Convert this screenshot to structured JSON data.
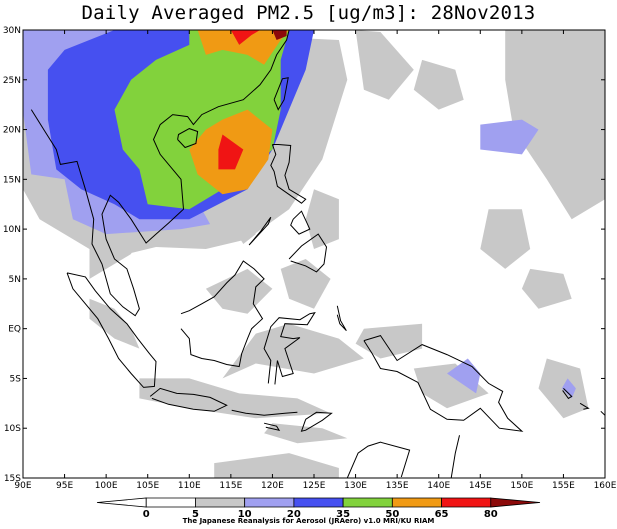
{
  "title": "Daily Averaged PM2.5 [ug/m3]: 28Nov2013",
  "credit": "The Japanese Reanalysis for Aerosol (JRAero) v1.0 MRI/KU RIAM",
  "axes": {
    "lon_range": [
      90,
      160
    ],
    "lat_range": [
      -15,
      30
    ],
    "lon_ticks": [
      {
        "v": 90,
        "label": "90E"
      },
      {
        "v": 95,
        "label": "95E"
      },
      {
        "v": 100,
        "label": "100E"
      },
      {
        "v": 105,
        "label": "105E"
      },
      {
        "v": 110,
        "label": "110E"
      },
      {
        "v": 115,
        "label": "115E"
      },
      {
        "v": 120,
        "label": "120E"
      },
      {
        "v": 125,
        "label": "125E"
      },
      {
        "v": 130,
        "label": "130E"
      },
      {
        "v": 135,
        "label": "135E"
      },
      {
        "v": 140,
        "label": "140E"
      },
      {
        "v": 145,
        "label": "145E"
      },
      {
        "v": 150,
        "label": "150E"
      },
      {
        "v": 155,
        "label": "155E"
      },
      {
        "v": 160,
        "label": "160E"
      }
    ],
    "lat_ticks": [
      {
        "v": 30,
        "label": "30N"
      },
      {
        "v": 25,
        "label": "25N"
      },
      {
        "v": 20,
        "label": "20N"
      },
      {
        "v": 15,
        "label": "15N"
      },
      {
        "v": 10,
        "label": "10N"
      },
      {
        "v": 5,
        "label": "5N"
      },
      {
        "v": 0,
        "label": "EQ"
      },
      {
        "v": -5,
        "label": "5S"
      },
      {
        "v": -10,
        "label": "10S"
      },
      {
        "v": -15,
        "label": "15S"
      }
    ]
  },
  "colorbar": {
    "levels": [
      "0",
      "5",
      "10",
      "20",
      "35",
      "50",
      "65",
      "80"
    ],
    "colors": [
      "#ffffff",
      "#ffffff",
      "#c8c8c8",
      "#a0a0f0",
      "#4650f0",
      "#82d23c",
      "#f09a14",
      "#f01414",
      "#8c0a0a"
    ]
  },
  "chart_data": {
    "type": "heatmap",
    "title": "Daily Averaged PM2.5 [ug/m3]: 28Nov2013",
    "variable": "PM2.5 daily average (ug/m3)",
    "date": "28Nov2013",
    "x_range_lon": [
      90,
      160
    ],
    "y_range_lat": [
      -15,
      30
    ],
    "contour_levels": [
      0,
      5,
      10,
      20,
      35,
      50,
      65,
      80
    ],
    "regions": [
      {
        "band": "10-20",
        "lonlat": [
          [
            111,
            30
          ],
          [
            112,
            24
          ],
          [
            106,
            15
          ],
          [
            111.5,
            12
          ],
          [
            112.5,
            10.5
          ],
          [
            109,
            10
          ],
          [
            100,
            9.5
          ],
          [
            96,
            11
          ],
          [
            95,
            15
          ],
          [
            91,
            15.5
          ],
          [
            89.5,
            25
          ],
          [
            90,
            30
          ]
        ]
      },
      {
        "band": "20-35",
        "lonlat": [
          [
            125,
            30
          ],
          [
            124,
            26
          ],
          [
            120,
            18
          ],
          [
            117,
            14
          ],
          [
            110,
            11
          ],
          [
            104,
            11
          ],
          [
            101,
            12.5
          ],
          [
            97,
            14
          ],
          [
            94,
            16
          ],
          [
            93,
            21
          ],
          [
            93,
            26
          ],
          [
            95,
            28
          ],
          [
            101,
            30
          ]
        ]
      },
      {
        "band": "35-50",
        "lonlat": [
          [
            122,
            30
          ],
          [
            121,
            27
          ],
          [
            121,
            22
          ],
          [
            120,
            18
          ],
          [
            116,
            15
          ],
          [
            110,
            12
          ],
          [
            105,
            12.5
          ],
          [
            104,
            16
          ],
          [
            102,
            18
          ],
          [
            101,
            22
          ],
          [
            103,
            25
          ],
          [
            106,
            27
          ],
          [
            110,
            28.5
          ],
          [
            110,
            30
          ]
        ]
      },
      {
        "band": "50-65",
        "lonlat": [
          [
            114,
            21
          ],
          [
            117,
            22
          ],
          [
            120,
            20
          ],
          [
            119.5,
            17
          ],
          [
            117,
            14
          ],
          [
            114,
            13.5
          ],
          [
            111,
            15.5
          ],
          [
            110,
            18
          ],
          [
            112,
            20
          ]
        ]
      },
      {
        "band": "50-65",
        "lonlat": [
          [
            111,
            30
          ],
          [
            112,
            27.5
          ],
          [
            114,
            28
          ],
          [
            117,
            27.5
          ],
          [
            119,
            26.5
          ],
          [
            121,
            29
          ],
          [
            122,
            30
          ]
        ]
      },
      {
        "band": "65-80",
        "lonlat": [
          [
            114,
            19.5
          ],
          [
            116.5,
            18
          ],
          [
            115.5,
            16
          ],
          [
            113.5,
            16
          ],
          [
            113.5,
            18
          ]
        ]
      },
      {
        "band": "65-80",
        "lonlat": [
          [
            115,
            30
          ],
          [
            116,
            28.5
          ],
          [
            117.5,
            29.5
          ],
          [
            118.5,
            30
          ]
        ]
      },
      {
        "band": "80+",
        "lonlat": [
          [
            120,
            30
          ],
          [
            120.5,
            29
          ],
          [
            121.7,
            29.4
          ],
          [
            121.7,
            30
          ]
        ]
      },
      {
        "band": "10-20",
        "lonlat": [
          [
            145,
            20.5
          ],
          [
            150,
            21
          ],
          [
            152,
            20
          ],
          [
            150,
            17.5
          ],
          [
            145,
            18
          ]
        ]
      },
      {
        "band": "10-20",
        "lonlat": [
          [
            143.5,
            -3
          ],
          [
            145,
            -4.5
          ],
          [
            144.5,
            -6.5
          ],
          [
            141,
            -4.5
          ]
        ]
      },
      {
        "band": "10-20",
        "lonlat": [
          [
            155.5,
            -5
          ],
          [
            156.5,
            -6
          ],
          [
            156,
            -7
          ],
          [
            154.8,
            -6
          ]
        ]
      }
    ],
    "background_haze_5_10_lonlat": [
      [
        [
          92,
          30
        ],
        [
          110,
          29.7
        ],
        [
          128,
          29
        ],
        [
          129,
          25
        ],
        [
          126,
          17
        ],
        [
          122,
          12
        ],
        [
          117,
          9
        ],
        [
          112,
          8
        ],
        [
          106,
          8.2
        ],
        [
          100,
          7
        ],
        [
          96,
          9
        ],
        [
          92,
          11
        ],
        [
          90,
          14
        ],
        [
          89.5,
          29
        ]
      ]
    ]
  }
}
